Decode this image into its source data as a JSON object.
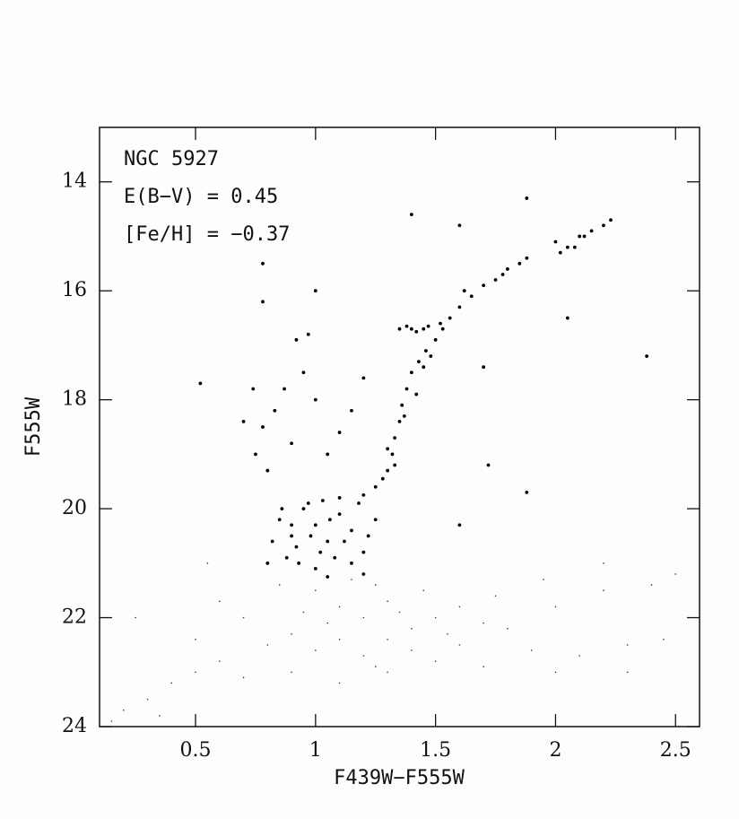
{
  "chart_data": {
    "type": "scatter",
    "annotations": [
      "NGC 5927",
      "E(B−V) = 0.45",
      "[Fe/H] = −0.37"
    ],
    "x_label": "F439W−F555W",
    "y_label": "F555W",
    "xlim": [
      0.1,
      2.6
    ],
    "ylim": [
      24,
      13
    ],
    "xticks": [
      0.5,
      1,
      1.5,
      2,
      2.5
    ],
    "yticks": [
      14,
      16,
      18,
      20,
      22,
      24
    ],
    "series": [
      {
        "color": "#000000",
        "x": [
          0.85,
          0.9,
          0.95,
          1.0,
          1.05,
          1.1,
          1.15,
          1.2,
          0.88,
          0.93,
          1.0,
          1.08,
          1.15,
          1.22,
          0.97,
          1.03,
          1.1,
          0.82,
          0.8,
          1.25,
          0.92,
          1.02,
          1.12,
          0.98,
          1.06,
          0.9,
          1.18,
          0.86,
          1.2,
          1.05,
          1.2,
          1.25,
          1.28,
          1.3,
          1.33,
          1.32,
          1.33,
          1.35,
          1.36,
          1.38,
          1.4,
          1.43,
          1.46,
          1.5,
          1.53,
          1.56,
          1.6,
          1.65,
          1.7,
          1.75,
          1.8,
          1.85,
          1.88,
          1.3,
          1.37,
          1.42,
          1.45,
          1.48,
          1.52,
          1.62,
          1.78,
          2.0,
          2.05,
          2.1,
          2.15,
          2.2,
          2.23,
          2.02,
          2.08,
          2.12,
          1.35,
          1.38,
          1.4,
          1.42,
          1.45,
          1.47,
          0.7,
          0.75,
          0.78,
          0.8,
          0.83,
          0.87,
          0.9,
          0.95,
          1.0,
          1.05,
          1.1,
          0.92,
          0.97,
          0.78,
          0.78,
          1.0,
          0.52,
          1.4,
          1.88,
          1.6,
          2.38,
          1.7,
          2.05,
          1.72,
          1.88,
          0.74,
          1.2,
          1.15,
          1.6
        ],
        "values": [
          20.2,
          20.5,
          20.0,
          20.3,
          20.6,
          20.1,
          20.4,
          20.8,
          20.9,
          21.0,
          21.1,
          20.9,
          21.0,
          20.5,
          19.9,
          19.85,
          19.8,
          20.6,
          21.0,
          20.2,
          20.7,
          20.8,
          20.6,
          20.5,
          20.2,
          20.3,
          19.9,
          20.0,
          21.2,
          21.25,
          19.75,
          19.6,
          19.45,
          19.3,
          19.2,
          19.0,
          18.7,
          18.4,
          18.1,
          17.8,
          17.5,
          17.3,
          17.1,
          16.9,
          16.7,
          16.5,
          16.3,
          16.1,
          15.9,
          15.8,
          15.6,
          15.5,
          15.4,
          18.9,
          18.3,
          17.9,
          17.4,
          17.2,
          16.6,
          16.0,
          15.7,
          15.1,
          15.2,
          15.0,
          14.9,
          14.8,
          14.7,
          15.3,
          15.2,
          15.0,
          16.7,
          16.65,
          16.7,
          16.75,
          16.7,
          16.65,
          18.4,
          19.0,
          18.5,
          19.3,
          18.2,
          17.8,
          18.8,
          17.5,
          18.0,
          19.0,
          18.6,
          16.9,
          16.8,
          15.5,
          16.2,
          16.0,
          17.7,
          14.6,
          14.3,
          14.8,
          17.2,
          17.4,
          16.5,
          19.2,
          19.7,
          17.8,
          17.6,
          18.2,
          20.3
        ]
      },
      {
        "color": "#333333",
        "x": [
          1.0,
          1.1,
          1.2,
          1.3,
          1.4,
          1.5,
          1.6,
          0.9,
          0.8,
          1.0,
          1.2,
          1.4,
          1.6,
          1.8,
          2.0,
          2.2,
          2.4,
          0.6,
          0.4,
          0.2,
          0.3,
          0.5,
          0.7,
          0.9,
          1.1,
          1.3,
          1.5,
          1.7,
          1.9,
          2.1,
          2.3,
          2.5,
          1.15,
          1.25,
          1.35,
          1.05,
          0.95,
          1.45,
          1.55,
          1.75,
          0.7,
          0.6,
          0.25,
          2.45,
          0.15,
          0.35,
          1.3,
          1.1,
          1.7,
          2.0,
          2.3,
          0.85,
          1.25,
          0.5,
          1.95,
          2.2,
          0.55
        ],
        "values": [
          21.5,
          21.8,
          22.0,
          21.7,
          22.2,
          22.0,
          21.8,
          22.3,
          22.5,
          22.6,
          22.7,
          22.6,
          22.5,
          22.2,
          21.8,
          21.5,
          21.4,
          22.8,
          23.2,
          23.7,
          23.5,
          23.0,
          23.1,
          23.0,
          23.2,
          23.0,
          22.8,
          22.9,
          22.6,
          22.7,
          22.5,
          21.2,
          21.3,
          21.4,
          21.9,
          22.1,
          21.9,
          21.5,
          22.3,
          21.6,
          22.0,
          21.7,
          22.0,
          22.4,
          23.9,
          23.8,
          22.4,
          22.4,
          22.1,
          23.0,
          23.0,
          21.4,
          22.9,
          22.4,
          21.3,
          21.0,
          21.0
        ]
      }
    ]
  }
}
